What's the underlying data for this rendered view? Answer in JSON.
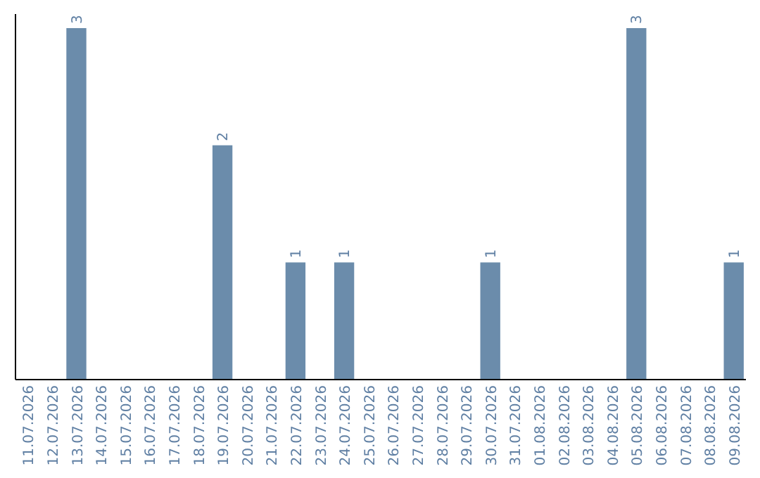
{
  "chart_data": {
    "type": "bar",
    "categories": [
      "11.07.2026",
      "12.07.2026",
      "13.07.2026",
      "14.07.2026",
      "15.07.2026",
      "16.07.2026",
      "17.07.2026",
      "18.07.2026",
      "19.07.2026",
      "20.07.2026",
      "21.07.2026",
      "22.07.2026",
      "23.07.2026",
      "24.07.2026",
      "25.07.2026",
      "26.07.2026",
      "27.07.2026",
      "28.07.2026",
      "29.07.2026",
      "30.07.2026",
      "31.07.2026",
      "01.08.2026",
      "02.08.2026",
      "03.08.2026",
      "04.08.2026",
      "05.08.2026",
      "06.08.2026",
      "07.08.2026",
      "08.08.2026",
      "09.08.2026"
    ],
    "values": [
      0,
      0,
      3,
      0,
      0,
      0,
      0,
      0,
      2,
      0,
      0,
      1,
      0,
      1,
      0,
      0,
      0,
      0,
      0,
      1,
      0,
      0,
      0,
      0,
      0,
      3,
      0,
      0,
      0,
      1
    ],
    "value_labels": [
      null,
      null,
      "3",
      null,
      null,
      null,
      null,
      null,
      "2",
      null,
      null,
      "1",
      null,
      "1",
      null,
      null,
      null,
      null,
      null,
      "1",
      null,
      null,
      null,
      null,
      null,
      "3",
      null,
      null,
      null,
      "1"
    ],
    "color": "#6b8cab",
    "ylim": [
      0,
      3
    ],
    "tick_labels": "x"
  }
}
